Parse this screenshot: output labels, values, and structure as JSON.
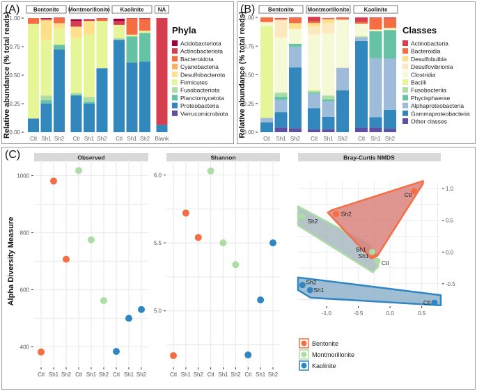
{
  "panels": {
    "A": "(A)",
    "B": "(B)",
    "C": "(C)"
  },
  "chart_data": [
    {
      "id": "A",
      "type": "bar",
      "stacked": true,
      "ylabel": "Relative abundance (% total reads)",
      "yticks": [
        "0.00",
        "0.25",
        "0.50",
        "0.75",
        "1.00"
      ],
      "ylim": [
        0,
        1
      ],
      "facets": [
        {
          "name": "Bentonite",
          "categories": [
            "Ctl",
            "Sh1",
            "Sh2"
          ]
        },
        {
          "name": "Montmorillonite",
          "categories": [
            "Ctl",
            "Sh1",
            "Sh2"
          ]
        },
        {
          "name": "Kaolinite",
          "categories": [
            "Ctl",
            "Sh1",
            "Sh2"
          ]
        },
        {
          "name": "NA",
          "categories": [
            "Blank"
          ]
        }
      ],
      "legend": {
        "title": "Phyla",
        "position": "right"
      },
      "series": [
        {
          "name": "Verrucomicrobiota",
          "color": "#5e4fa2",
          "values": [
            0,
            0,
            0.005,
            0,
            0,
            0,
            0,
            0,
            0,
            0
          ]
        },
        {
          "name": "Proteobacteria",
          "color": "#3288bd",
          "values": [
            0.12,
            0.25,
            0.72,
            0.32,
            0.25,
            0.56,
            0.81,
            0.61,
            0.62,
            0.065
          ]
        },
        {
          "name": "Planctomycetota",
          "color": "#66c2a5",
          "values": [
            0,
            0.03,
            0.04,
            0.01,
            0.015,
            0,
            0,
            0.23,
            0.25,
            0
          ]
        },
        {
          "name": "Fusobacteriota",
          "color": "#abdda4",
          "values": [
            0,
            0.04,
            0,
            0.015,
            0.045,
            0,
            0.015,
            0,
            0,
            0
          ]
        },
        {
          "name": "Firmicutes",
          "color": "#e6f598",
          "values": [
            0.83,
            0.49,
            0.14,
            0.48,
            0.545,
            0.415,
            0.115,
            0.01,
            0.01,
            0
          ]
        },
        {
          "name": "Desulfobacterota",
          "color": "#fee08b",
          "values": [
            0,
            0.17,
            0.05,
            0.1,
            0.12,
            0,
            0,
            0.005,
            0.01,
            0
          ]
        },
        {
          "name": "Cyanobacteria",
          "color": "#fdae61",
          "values": [
            0,
            0,
            0,
            0,
            0,
            0,
            0,
            0,
            0,
            0
          ]
        },
        {
          "name": "Bacteroidota",
          "color": "#f46d43",
          "values": [
            0.05,
            0.01,
            0.045,
            0,
            0,
            0.02,
            0,
            0.14,
            0.1,
            0
          ]
        },
        {
          "name": "Actinobacteriota",
          "color": "#d53e4f",
          "values": [
            0,
            0.005,
            0.005,
            0.05,
            0.01,
            0.005,
            0.035,
            0.005,
            0.01,
            0.935
          ]
        },
        {
          "name": "Acidobacteriota",
          "color": "#9e0142",
          "values": [
            0,
            0.005,
            0,
            0.015,
            0.005,
            0,
            0.02,
            0,
            0,
            0
          ]
        }
      ]
    },
    {
      "id": "B",
      "type": "bar",
      "stacked": true,
      "ylabel": "Relative abundance (% total reads)",
      "yticks": [
        "0.00",
        "0.25",
        "0.50",
        "0.75",
        "1.00"
      ],
      "ylim": [
        0,
        1
      ],
      "facets": [
        {
          "name": "Bentonite",
          "categories": [
            "Ctl",
            "Sh1",
            "Sh2"
          ]
        },
        {
          "name": "Montmorillonite",
          "categories": [
            "Ctl",
            "Sh1",
            "Sh2"
          ]
        },
        {
          "name": "Kaolinite",
          "categories": [
            "Ctl",
            "Sh1",
            "Sh2"
          ]
        }
      ],
      "legend": {
        "title": "Classes",
        "position": "right"
      },
      "series": [
        {
          "name": "Other classes",
          "color": "#5e4fa2",
          "values": [
            0,
            0.04,
            0.035,
            0.025,
            0.025,
            0,
            0.04,
            0.04,
            0.03
          ]
        },
        {
          "name": "Gammaproteobacteria",
          "color": "#3288bd",
          "values": [
            0.085,
            0.135,
            0.53,
            0.185,
            0.11,
            0.365,
            0.755,
            0.09,
            0.165
          ]
        },
        {
          "name": "Alphaproteobacteria",
          "color": "#9ebcda",
          "values": [
            0.04,
            0.105,
            0.18,
            0.125,
            0.135,
            0.195,
            0.03,
            0.515,
            0.445
          ]
        },
        {
          "name": "Phycisphaerae",
          "color": "#66c2a5",
          "values": [
            0,
            0.03,
            0.025,
            0.01,
            0.015,
            0,
            0,
            0.235,
            0.25
          ]
        },
        {
          "name": "Fusobacteriia",
          "color": "#abdda4",
          "values": [
            0,
            0.035,
            0,
            0.015,
            0.035,
            0,
            0.01,
            0,
            0
          ]
        },
        {
          "name": "Bacilli",
          "color": "#e6f598",
          "values": [
            0.8,
            0,
            0,
            0.01,
            0,
            0,
            0,
            0,
            0
          ]
        },
        {
          "name": "Clostridia",
          "color": "#f5f9d5",
          "values": [
            0.025,
            0.48,
            0.13,
            0.48,
            0.54,
            0.42,
            0.11,
            0.01,
            0.01
          ]
        },
        {
          "name": "Desulfovibrionia",
          "color": "#fde9c0",
          "values": [
            0.01,
            0.155,
            0,
            0.07,
            0.09,
            0,
            0,
            0,
            0
          ]
        },
        {
          "name": "Desulfobulbia",
          "color": "#fee08b",
          "values": [
            0,
            0,
            0.05,
            0.03,
            0.035,
            0,
            0,
            0.005,
            0.01
          ]
        },
        {
          "name": "Bacteroidia",
          "color": "#f46d43",
          "values": [
            0.04,
            0.01,
            0.045,
            0.015,
            0.005,
            0.015,
            0.015,
            0.1,
            0.08
          ]
        },
        {
          "name": "Actinobacteria",
          "color": "#d53e4f",
          "values": [
            0,
            0.005,
            0.005,
            0.04,
            0.005,
            0.005,
            0.04,
            0.005,
            0.01
          ]
        }
      ]
    },
    {
      "id": "C1",
      "type": "scatter",
      "title": "Observed",
      "ylabel": "Alpha Diversity Measure",
      "categories": [
        "Ctl",
        "Sh1",
        "Sh2",
        "Ctl",
        "Sh1",
        "Sh2",
        "Ctl",
        "Sh1",
        "Sh2"
      ],
      "yticks": [
        400,
        600,
        800,
        1000
      ],
      "ylim": [
        355,
        1045
      ],
      "values": [
        382,
        981,
        707,
        1018,
        775,
        562,
        384,
        500,
        531
      ],
      "groups": [
        "Bentonite",
        "Bentonite",
        "Bentonite",
        "Montmorillonite",
        "Montmorillonite",
        "Montmorillonite",
        "Kaolinite",
        "Kaolinite",
        "Kaolinite"
      ]
    },
    {
      "id": "C2",
      "type": "scatter",
      "title": "Shannon",
      "categories": [
        "Ctl",
        "Sh1",
        "Sh2",
        "Ctl",
        "Sh1",
        "Sh2",
        "Ctl",
        "Sh1",
        "Sh2"
      ],
      "yticks": [
        "5.0",
        "5.5",
        "6.0"
      ],
      "ylim": [
        4.64,
        6.09
      ],
      "values": [
        4.67,
        5.72,
        5.54,
        6.03,
        5.5,
        5.34,
        4.675,
        5.08,
        5.5
      ],
      "groups": [
        "Bentonite",
        "Bentonite",
        "Bentonite",
        "Montmorillonite",
        "Montmorillonite",
        "Montmorillonite",
        "Kaolinite",
        "Kaolinite",
        "Kaolinite"
      ]
    },
    {
      "id": "C3",
      "type": "scatter",
      "title": "Bray-Curtis NMDS",
      "xticks": [
        "-1.0",
        "-0.5",
        "0.0",
        "0.5"
      ],
      "yticks": [
        "-0.5",
        "0.0",
        "0.5",
        "1.0"
      ],
      "xlim": [
        -1.45,
        0.8
      ],
      "ylim": [
        -0.82,
        1.1
      ],
      "points": [
        {
          "label": "Ctl",
          "group": "Bentonite",
          "x": 0.38,
          "y": 0.96
        },
        {
          "label": "Sh2",
          "group": "Bentonite",
          "x": -0.85,
          "y": 0.6
        },
        {
          "label": "Sh1",
          "group": "Bentonite",
          "x": -0.26,
          "y": -0.05
        },
        {
          "label": "Sh2",
          "group": "Montmorillonite",
          "x": -1.38,
          "y": 0.56
        },
        {
          "label": "Sh1",
          "group": "Montmorillonite",
          "x": -0.28,
          "y": 0.0
        },
        {
          "label": "Ctl",
          "group": "Montmorillonite",
          "x": -0.2,
          "y": -0.14
        },
        {
          "label": "Sh2",
          "group": "Kaolinite",
          "x": -1.38,
          "y": -0.52
        },
        {
          "label": "Sh1",
          "group": "Kaolinite",
          "x": -1.26,
          "y": -0.6
        },
        {
          "label": "Ctl",
          "group": "Kaolinite",
          "x": 0.7,
          "y": -0.8
        }
      ]
    }
  ],
  "groups_legend": [
    {
      "name": "Bentonite",
      "color": "#f46d43",
      "fill": "#d9827d"
    },
    {
      "name": "Montmorillonite",
      "color": "#abdda4",
      "fill": "#a9b9bf"
    },
    {
      "name": "Kaolinite",
      "color": "#2f86c2",
      "fill": "#8fb3cb"
    }
  ]
}
